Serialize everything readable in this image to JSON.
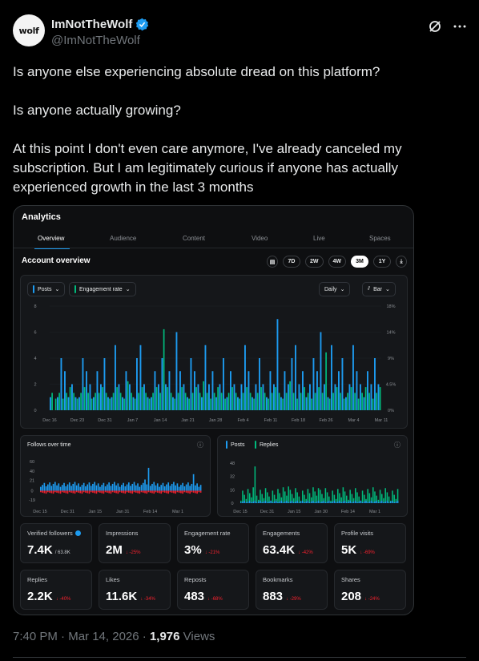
{
  "author": {
    "display_name": "ImNotTheWolf",
    "handle": "@ImNotTheWolf",
    "avatar_text": "wolf",
    "verified": true
  },
  "header_icons": [
    "grok-icon",
    "more-icon"
  ],
  "tweet": {
    "paragraphs": [
      "Is anyone else experiencing absolute dread on this platform?",
      "Is anyone actually growing?",
      "At this point I don't even care anymore, I've already canceled my subscription. But I am legitimately curious if anyone has actually experienced growth in the last 3 months"
    ]
  },
  "analytics": {
    "title": "Analytics",
    "tabs": [
      "Overview",
      "Audience",
      "Content",
      "Video",
      "Live",
      "Spaces"
    ],
    "active_tab": "Overview",
    "section_title": "Account overview",
    "ranges": [
      "7D",
      "2W",
      "4W",
      "3M",
      "1Y"
    ],
    "active_range": "3M",
    "chips": {
      "posts": "Posts",
      "engagement": "Engagement rate",
      "interval": "Daily",
      "chart_kind": "Bar"
    },
    "small_charts": {
      "follows_title": "Follows over time",
      "legend_posts": "Posts",
      "legend_replies": "Replies"
    },
    "stats": [
      {
        "label": "Verified followers",
        "value": "7.4K",
        "sub": "/ 63.8K",
        "change": ""
      },
      {
        "label": "Impressions",
        "value": "2M",
        "sub": "",
        "change": "↓ -25%"
      },
      {
        "label": "Engagement rate",
        "value": "3%",
        "sub": "",
        "change": "↓ -21%"
      },
      {
        "label": "Engagements",
        "value": "63.4K",
        "sub": "",
        "change": "↓ -42%"
      },
      {
        "label": "Profile visits",
        "value": "5K",
        "sub": "",
        "change": "↓ -69%"
      },
      {
        "label": "Replies",
        "value": "2.2K",
        "sub": "",
        "change": "↓ -40%"
      },
      {
        "label": "Likes",
        "value": "11.6K",
        "sub": "",
        "change": "↓ -34%"
      },
      {
        "label": "Reposts",
        "value": "483",
        "sub": "",
        "change": "↓ -68%"
      },
      {
        "label": "Bookmarks",
        "value": "883",
        "sub": "",
        "change": "↓ -29%"
      },
      {
        "label": "Shares",
        "value": "208",
        "sub": "",
        "change": "↓ -24%"
      }
    ]
  },
  "chart_data": [
    {
      "type": "bar",
      "x_ticks": [
        "Dec 16",
        "Dec 23",
        "Dec 31",
        "Jan 7",
        "Jan 14",
        "Jan 21",
        "Jan 28",
        "Feb 4",
        "Feb 11",
        "Feb 18",
        "Feb 26",
        "Mar 4",
        "Mar 11"
      ],
      "y_ticks_left": [
        "0",
        "2",
        "4",
        "6",
        "8"
      ],
      "y_ticks_right": [
        "0%",
        "4.5%",
        "9%",
        "14%",
        "18%"
      ],
      "ylim_left": [
        0,
        8
      ],
      "ylim_right": [
        0,
        18
      ],
      "series": [
        {
          "name": "Posts",
          "color": "#1d9bf0",
          "values": [
            1,
            0,
            1,
            4,
            3,
            1,
            2,
            1,
            1,
            4,
            3,
            2,
            1,
            3,
            2,
            4,
            1,
            1,
            5,
            2,
            1,
            3,
            2,
            1,
            4,
            5,
            2,
            1,
            1,
            3,
            2,
            4,
            2,
            3,
            1,
            6,
            3,
            2,
            1,
            4,
            3,
            2,
            1,
            5,
            2,
            3,
            1,
            2,
            4,
            1,
            3,
            2,
            1,
            2,
            5,
            3,
            1,
            2,
            4,
            2,
            1,
            3,
            2,
            7,
            1,
            3,
            2,
            4,
            5,
            2,
            3,
            1,
            2,
            4,
            3,
            6,
            2,
            1,
            5,
            2,
            3,
            4,
            1,
            2,
            5,
            3,
            2,
            1,
            3,
            2,
            4,
            2
          ]
        },
        {
          "name": "Engagement rate",
          "color": "#00ba7c",
          "values": [
            3,
            2,
            3,
            2,
            3,
            4,
            3,
            2,
            3,
            4,
            3,
            2,
            3,
            3,
            4,
            3,
            2,
            3,
            4,
            3,
            2,
            5,
            3,
            2,
            3,
            4,
            3,
            2,
            3,
            4,
            3,
            14,
            4,
            3,
            2,
            3,
            4,
            3,
            2,
            3,
            4,
            3,
            5,
            3,
            2,
            3,
            4,
            3,
            2,
            3,
            4,
            3,
            2,
            3,
            4,
            3,
            2,
            3,
            4,
            3,
            2,
            3,
            4,
            3,
            2,
            3,
            5,
            3,
            2,
            3,
            4,
            3,
            2,
            3,
            4,
            3,
            10,
            2,
            3,
            4,
            3,
            2,
            3,
            4,
            3,
            2,
            3,
            4,
            3,
            2,
            3,
            4
          ]
        }
      ]
    },
    {
      "type": "bar",
      "title": "Follows over time",
      "x_ticks": [
        "Dec 15",
        "Dec 31",
        "Jan 15",
        "Jan 31",
        "Feb 14",
        "Mar 1"
      ],
      "y_ticks": [
        "-19",
        "0",
        "21",
        "40",
        "60"
      ],
      "ylim": [
        -19,
        60
      ]
    },
    {
      "type": "bar",
      "x_ticks": [
        "Dec 15",
        "Dec 31",
        "Jan 15",
        "Jan 30",
        "Feb 14",
        "Mar 1"
      ],
      "y_ticks": [
        "0",
        "16",
        "32",
        "48"
      ],
      "ylim": [
        0,
        48
      ],
      "series": [
        {
          "name": "Posts",
          "color": "#1d9bf0"
        },
        {
          "name": "Replies",
          "color": "#00ba7c"
        }
      ]
    }
  ],
  "footer": {
    "time": "7:40 PM",
    "date": "Mar 14, 2026",
    "views_count": "1,976",
    "views_label": "Views"
  }
}
